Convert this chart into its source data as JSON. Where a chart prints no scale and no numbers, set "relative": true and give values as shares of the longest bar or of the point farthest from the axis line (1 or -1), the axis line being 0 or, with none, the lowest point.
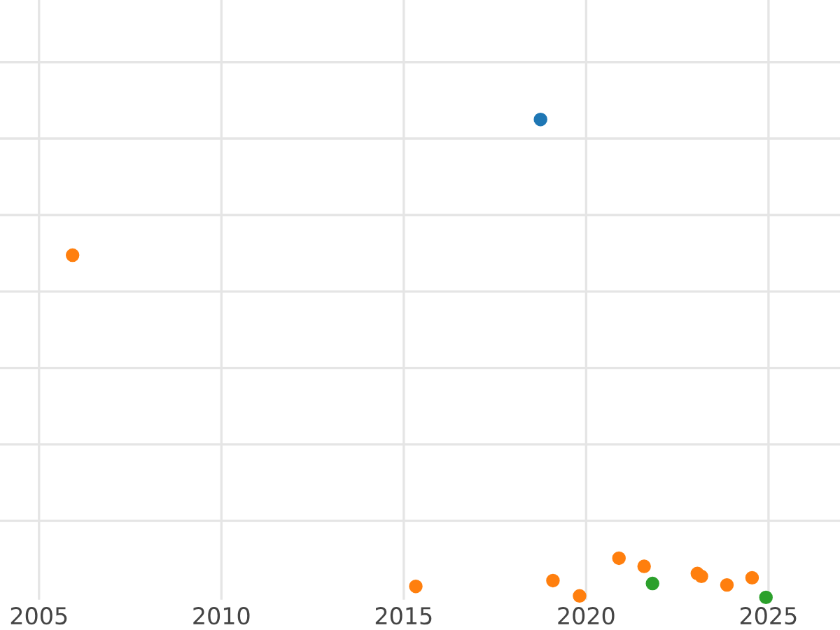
{
  "chart_data": {
    "type": "scatter",
    "relative": true,
    "xlim": [
      2003.93,
      2026.96
    ],
    "xticks": [
      2005,
      2010,
      2015,
      2020,
      2025
    ],
    "grid": true,
    "marker": "circle",
    "tick_labels": "x",
    "series": [
      {
        "color": "#1f77b4",
        "x": [
          2018.75
        ],
        "values": [
          1
        ]
      },
      {
        "color": "#ff7f0e",
        "x": [
          2005.92,
          2015.33,
          2019.09,
          2019.82,
          2020.9,
          2021.59,
          2023.05,
          2023.16,
          2023.86,
          2024.55
        ],
        "values": [
          0.716,
          0.023,
          0.035,
          0.003,
          0.082,
          0.065,
          0.05,
          0.044,
          0.026,
          0.041
        ]
      },
      {
        "color": "#2ca02c",
        "x": [
          2021.82,
          2024.93
        ],
        "values": [
          0.029,
          0
        ]
      }
    ]
  }
}
